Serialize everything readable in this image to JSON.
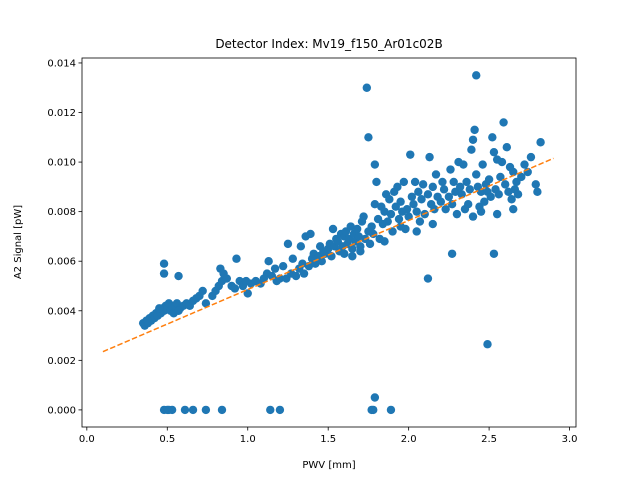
{
  "chart_data": {
    "type": "scatter",
    "title": "Detector Index: Mv19_f150_Ar01c02B",
    "xlabel": "PWV [mm]",
    "ylabel": "A2 Signal [pW]",
    "xlim": [
      -0.03,
      3.04
    ],
    "ylim": [
      -0.00069,
      0.0142
    ],
    "xticks": [
      0.0,
      0.5,
      1.0,
      1.5,
      2.0,
      2.5,
      3.0
    ],
    "xtick_labels": [
      "0.0",
      "0.5",
      "1.0",
      "1.5",
      "2.0",
      "2.5",
      "3.0"
    ],
    "yticks": [
      0.0,
      0.002,
      0.004,
      0.006,
      0.008,
      0.01,
      0.012,
      0.014
    ],
    "ytick_labels": [
      "0.000",
      "0.002",
      "0.004",
      "0.006",
      "0.008",
      "0.010",
      "0.012",
      "0.014"
    ],
    "grid": false,
    "colors": {
      "points": "#1f77b4",
      "fit": "#ff7f0e"
    },
    "series": [
      {
        "name": "data",
        "kind": "scatter",
        "points": [
          [
            0.35,
            0.0035
          ],
          [
            0.36,
            0.0034
          ],
          [
            0.37,
            0.0036
          ],
          [
            0.38,
            0.0035
          ],
          [
            0.39,
            0.0037
          ],
          [
            0.4,
            0.0036
          ],
          [
            0.41,
            0.0038
          ],
          [
            0.42,
            0.0037
          ],
          [
            0.43,
            0.0039
          ],
          [
            0.44,
            0.0038
          ],
          [
            0.45,
            0.004
          ],
          [
            0.46,
            0.0039
          ],
          [
            0.47,
            0.0041
          ],
          [
            0.48,
            0.004
          ],
          [
            0.49,
            0.0042
          ],
          [
            0.5,
            0.0041
          ],
          [
            0.51,
            0.0043
          ],
          [
            0.52,
            0.004
          ],
          [
            0.53,
            0.0042
          ],
          [
            0.54,
            0.0039
          ],
          [
            0.55,
            0.0042
          ],
          [
            0.56,
            0.0043
          ],
          [
            0.58,
            0.0041
          ],
          [
            0.6,
            0.0042
          ],
          [
            0.62,
            0.0043
          ],
          [
            0.64,
            0.0042
          ],
          [
            0.66,
            0.0044
          ],
          [
            0.68,
            0.0045
          ],
          [
            0.7,
            0.0046
          ],
          [
            0.72,
            0.0048
          ],
          [
            0.57,
            0.004
          ],
          [
            0.45,
            0.0041
          ],
          [
            0.38,
            0.0036
          ],
          [
            0.48,
            0.0059
          ],
          [
            0.48,
            0.0055
          ],
          [
            0.57,
            0.0054
          ],
          [
            0.83,
            0.0057
          ],
          [
            0.74,
            0.0043
          ],
          [
            0.78,
            0.0046
          ],
          [
            0.8,
            0.0048
          ],
          [
            0.82,
            0.005
          ],
          [
            0.84,
            0.0052
          ],
          [
            0.85,
            0.0055
          ],
          [
            0.87,
            0.0053
          ],
          [
            0.9,
            0.005
          ],
          [
            0.92,
            0.0049
          ],
          [
            0.93,
            0.0061
          ],
          [
            0.95,
            0.0052
          ],
          [
            0.97,
            0.005
          ],
          [
            0.99,
            0.0052
          ],
          [
            1.0,
            0.0047
          ],
          [
            1.02,
            0.0051
          ],
          [
            1.05,
            0.0052
          ],
          [
            1.08,
            0.0051
          ],
          [
            1.1,
            0.0053
          ],
          [
            1.12,
            0.0055
          ],
          [
            1.13,
            0.006
          ],
          [
            1.15,
            0.0054
          ],
          [
            1.17,
            0.0057
          ],
          [
            1.18,
            0.0052
          ],
          [
            1.2,
            0.0053
          ],
          [
            1.22,
            0.0058
          ],
          [
            1.24,
            0.0053
          ],
          [
            1.25,
            0.0067
          ],
          [
            1.27,
            0.0055
          ],
          [
            1.28,
            0.0061
          ],
          [
            1.3,
            0.0054
          ],
          [
            1.32,
            0.0057
          ],
          [
            1.33,
            0.0066
          ],
          [
            1.34,
            0.0059
          ],
          [
            1.35,
            0.0055
          ],
          [
            1.36,
            0.007
          ],
          [
            1.38,
            0.0058
          ],
          [
            1.39,
            0.0071
          ],
          [
            1.4,
            0.0061
          ],
          [
            1.41,
            0.0063
          ],
          [
            1.42,
            0.0059
          ],
          [
            1.44,
            0.0062
          ],
          [
            1.45,
            0.0066
          ],
          [
            1.46,
            0.006
          ],
          [
            1.47,
            0.0064
          ],
          [
            1.48,
            0.0063
          ],
          [
            1.5,
            0.0065
          ],
          [
            1.51,
            0.0067
          ],
          [
            1.52,
            0.0062
          ],
          [
            1.53,
            0.0073
          ],
          [
            1.54,
            0.0066
          ],
          [
            1.55,
            0.0069
          ],
          [
            1.56,
            0.0068
          ],
          [
            1.57,
            0.0064
          ],
          [
            1.58,
            0.0071
          ],
          [
            1.59,
            0.0066
          ],
          [
            1.6,
            0.007
          ],
          [
            1.61,
            0.0072
          ],
          [
            1.62,
            0.0067
          ],
          [
            1.63,
            0.0069
          ],
          [
            1.64,
            0.0074
          ],
          [
            1.65,
            0.0065
          ],
          [
            1.66,
            0.0071
          ],
          [
            1.67,
            0.0068
          ],
          [
            1.68,
            0.0073
          ],
          [
            1.69,
            0.007
          ],
          [
            1.7,
            0.0066
          ],
          [
            1.71,
            0.0076
          ],
          [
            1.72,
            0.0078
          ],
          [
            1.73,
            0.0069
          ],
          [
            1.75,
            0.0072
          ],
          [
            1.76,
            0.0067
          ],
          [
            1.77,
            0.0074
          ],
          [
            1.78,
            0.0071
          ],
          [
            1.79,
            0.0083
          ],
          [
            1.8,
            0.0092
          ],
          [
            1.81,
            0.0077
          ],
          [
            1.82,
            0.0069
          ],
          [
            1.83,
            0.0082
          ],
          [
            1.84,
            0.0075
          ],
          [
            1.85,
            0.008
          ],
          [
            1.86,
            0.0087
          ],
          [
            1.87,
            0.0076
          ],
          [
            1.88,
            0.0085
          ],
          [
            1.89,
            0.0079
          ],
          [
            1.9,
            0.0072
          ],
          [
            1.91,
            0.0088
          ],
          [
            1.92,
            0.0082
          ],
          [
            1.93,
            0.009
          ],
          [
            1.94,
            0.0077
          ],
          [
            1.95,
            0.0084
          ],
          [
            1.96,
            0.008
          ],
          [
            1.97,
            0.0092
          ],
          [
            1.98,
            0.0073
          ],
          [
            1.99,
            0.0081
          ],
          [
            2.0,
            0.0078
          ],
          [
            2.01,
            0.0103
          ],
          [
            2.02,
            0.0086
          ],
          [
            2.03,
            0.0083
          ],
          [
            2.04,
            0.0092
          ],
          [
            2.05,
            0.008
          ],
          [
            2.06,
            0.0088
          ],
          [
            2.07,
            0.0076
          ],
          [
            2.08,
            0.0085
          ],
          [
            2.09,
            0.0091
          ],
          [
            2.1,
            0.0079
          ],
          [
            2.12,
            0.0087
          ],
          [
            2.13,
            0.0102
          ],
          [
            2.14,
            0.0083
          ],
          [
            2.15,
            0.009
          ],
          [
            2.16,
            0.0081
          ],
          [
            2.17,
            0.0095
          ],
          [
            2.18,
            0.0086
          ],
          [
            2.2,
            0.0084
          ],
          [
            2.21,
            0.0092
          ],
          [
            2.22,
            0.0089
          ],
          [
            2.23,
            0.0081
          ],
          [
            2.25,
            0.0086
          ],
          [
            2.26,
            0.0097
          ],
          [
            2.27,
            0.0083
          ],
          [
            2.28,
            0.0092
          ],
          [
            2.29,
            0.0088
          ],
          [
            2.3,
            0.0079
          ],
          [
            2.31,
            0.01
          ],
          [
            2.32,
            0.009
          ],
          [
            2.33,
            0.0087
          ],
          [
            2.34,
            0.0099
          ],
          [
            2.35,
            0.0081
          ],
          [
            2.36,
            0.0092
          ],
          [
            2.37,
            0.0083
          ],
          [
            2.38,
            0.0089
          ],
          [
            2.39,
            0.0105
          ],
          [
            2.4,
            0.0109
          ],
          [
            2.41,
            0.0113
          ],
          [
            2.42,
            0.0095
          ],
          [
            2.43,
            0.009
          ],
          [
            2.44,
            0.0082
          ],
          [
            2.45,
            0.0088
          ],
          [
            2.46,
            0.0099
          ],
          [
            2.47,
            0.0084
          ],
          [
            2.48,
            0.0091
          ],
          [
            2.49,
            0.0088
          ],
          [
            2.5,
            0.0093
          ],
          [
            2.51,
            0.0086
          ],
          [
            2.52,
            0.011
          ],
          [
            2.53,
            0.0104
          ],
          [
            2.54,
            0.0089
          ],
          [
            2.55,
            0.0101
          ],
          [
            2.56,
            0.0087
          ],
          [
            2.57,
            0.0094
          ],
          [
            2.58,
            0.01
          ],
          [
            2.59,
            0.0116
          ],
          [
            2.6,
            0.0091
          ],
          [
            2.61,
            0.0106
          ],
          [
            2.62,
            0.0088
          ],
          [
            2.63,
            0.0098
          ],
          [
            2.64,
            0.0085
          ],
          [
            2.65,
            0.0096
          ],
          [
            2.66,
            0.0089
          ],
          [
            2.67,
            0.0092
          ],
          [
            2.68,
            0.0087
          ],
          [
            2.7,
            0.0094
          ],
          [
            2.72,
            0.0099
          ],
          [
            2.74,
            0.0096
          ],
          [
            2.76,
            0.0102
          ],
          [
            2.79,
            0.0091
          ],
          [
            2.8,
            0.0088
          ],
          [
            2.82,
            0.0108
          ],
          [
            1.6,
            0.0063
          ],
          [
            1.65,
            0.0062
          ],
          [
            1.7,
            0.0064
          ],
          [
            1.85,
            0.0068
          ],
          [
            1.95,
            0.0074
          ],
          [
            2.05,
            0.0072
          ],
          [
            2.15,
            0.0075
          ],
          [
            2.4,
            0.0078
          ],
          [
            2.45,
            0.008
          ],
          [
            2.55,
            0.0079
          ],
          [
            2.65,
            0.0081
          ],
          [
            1.74,
            0.013
          ],
          [
            1.75,
            0.011
          ],
          [
            2.42,
            0.0135
          ],
          [
            2.49,
            0.00265
          ],
          [
            2.53,
            0.0063
          ],
          [
            2.27,
            0.0063
          ],
          [
            2.12,
            0.0053
          ],
          [
            1.79,
            0.0099
          ],
          [
            0.48,
            0.0
          ],
          [
            0.5,
            0.0
          ],
          [
            0.51,
            0.0
          ],
          [
            0.53,
            0.0
          ],
          [
            0.61,
            0.0
          ],
          [
            0.66,
            0.0
          ],
          [
            0.74,
            0.0
          ],
          [
            0.84,
            0.0
          ],
          [
            1.14,
            0.0
          ],
          [
            1.2,
            0.0
          ],
          [
            1.77,
            0.0
          ],
          [
            1.78,
            0.0
          ],
          [
            1.79,
            0.0005
          ],
          [
            1.89,
            0.0
          ]
        ]
      },
      {
        "name": "linear fit",
        "kind": "dashed-line",
        "x": [
          0.1,
          2.9
        ],
        "y": [
          0.00235,
          0.01015
        ]
      }
    ]
  }
}
